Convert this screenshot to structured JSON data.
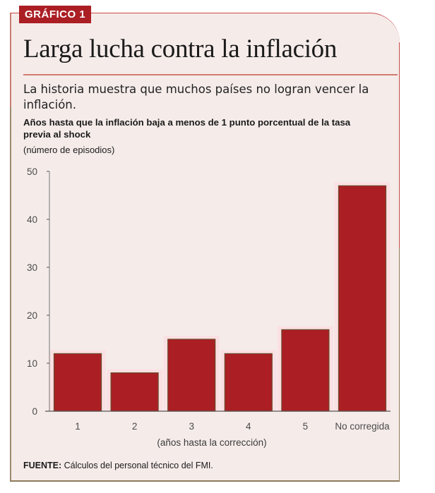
{
  "badge": "GRÁFICO 1",
  "title": "Larga lucha contra la inflación",
  "subtitle": "La historia muestra que muchos países no logran vencer la inflación.",
  "source": {
    "label": "FUENTE:",
    "text": " Cálculos del personal técnico del FMI."
  },
  "colors": {
    "bar": "#ab1f24",
    "bar_edge": "#6b4a2a",
    "bar_glow": "#fbe0e3",
    "badge": "#ab1f24",
    "axis": "#8a8a8a"
  },
  "chart_data": {
    "type": "bar",
    "title": "Años hasta que la inflación baja a menos de 1 punto porcentual de la tasa previa al shock",
    "units": "(número de episodios)",
    "categories": [
      "1",
      "2",
      "3",
      "4",
      "5",
      "No corregida"
    ],
    "values": [
      12,
      8,
      15,
      12,
      17,
      47
    ],
    "xlabel": "(años hasta la corrección)",
    "ylabel": "",
    "ylim": [
      0,
      50
    ],
    "yticks": [
      0,
      10,
      20,
      30,
      40,
      50
    ],
    "grid": false,
    "legend": "none"
  }
}
